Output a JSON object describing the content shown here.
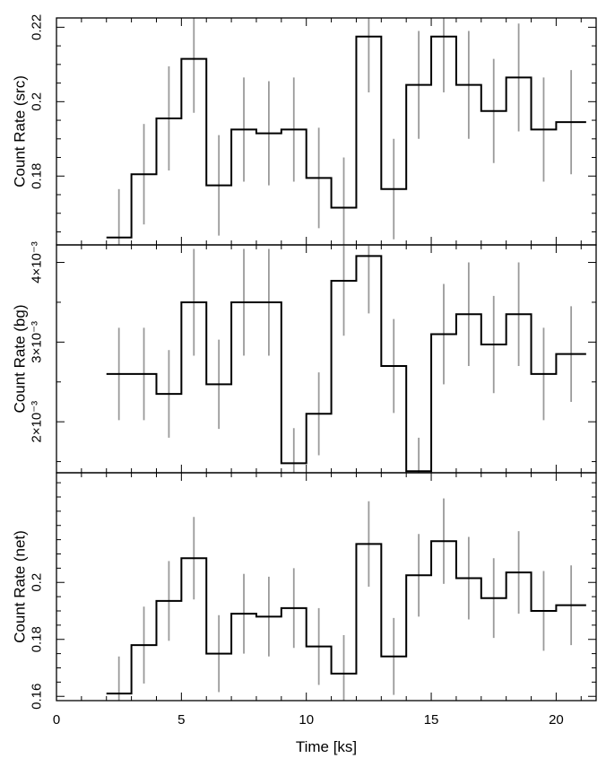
{
  "chart_data": [
    {
      "type": "line",
      "ylabel": "Count Rate (src)",
      "xlabel": "",
      "xlim": [
        0,
        21.6
      ],
      "ylim": [
        0.1615,
        0.2225
      ],
      "yticks": [
        {
          "value": 0.18,
          "label": "0.18"
        },
        {
          "value": 0.2,
          "label": "0.2"
        },
        {
          "value": 0.22,
          "label": "0.22"
        }
      ],
      "ytick_minor": [
        0.165,
        0.17,
        0.175,
        0.185,
        0.19,
        0.195,
        0.205,
        0.21,
        0.215
      ],
      "bins": [
        {
          "x0": 2.0,
          "x1": 3.0,
          "y": 0.1635,
          "err": 0.013
        },
        {
          "x0": 3.0,
          "x1": 4.0,
          "y": 0.1805,
          "err": 0.0135
        },
        {
          "x0": 4.0,
          "x1": 5.0,
          "y": 0.1955,
          "err": 0.014
        },
        {
          "x0": 5.0,
          "x1": 6.0,
          "y": 0.2115,
          "err": 0.0145
        },
        {
          "x0": 6.0,
          "x1": 7.0,
          "y": 0.1775,
          "err": 0.0135
        },
        {
          "x0": 7.0,
          "x1": 8.0,
          "y": 0.1925,
          "err": 0.014
        },
        {
          "x0": 8.0,
          "x1": 9.0,
          "y": 0.1915,
          "err": 0.014
        },
        {
          "x0": 9.0,
          "x1": 10.0,
          "y": 0.1925,
          "err": 0.014
        },
        {
          "x0": 10.0,
          "x1": 11.0,
          "y": 0.1795,
          "err": 0.0135
        },
        {
          "x0": 11.0,
          "x1": 12.0,
          "y": 0.1715,
          "err": 0.0135
        },
        {
          "x0": 12.0,
          "x1": 13.0,
          "y": 0.2175,
          "err": 0.015
        },
        {
          "x0": 13.0,
          "x1": 14.0,
          "y": 0.1765,
          "err": 0.0135
        },
        {
          "x0": 14.0,
          "x1": 15.0,
          "y": 0.2045,
          "err": 0.0145
        },
        {
          "x0": 15.0,
          "x1": 16.0,
          "y": 0.2175,
          "err": 0.015
        },
        {
          "x0": 16.0,
          "x1": 17.0,
          "y": 0.2045,
          "err": 0.0145
        },
        {
          "x0": 17.0,
          "x1": 18.0,
          "y": 0.1975,
          "err": 0.014
        },
        {
          "x0": 18.0,
          "x1": 19.0,
          "y": 0.2065,
          "err": 0.0145
        },
        {
          "x0": 19.0,
          "x1": 20.0,
          "y": 0.1925,
          "err": 0.014
        },
        {
          "x0": 20.0,
          "x1": 21.2,
          "y": 0.1945,
          "err": 0.014
        }
      ]
    },
    {
      "type": "line",
      "ylabel": "Count Rate (bg)",
      "xlabel": "",
      "xlim": [
        0,
        21.6
      ],
      "ylim": [
        0.00136,
        0.00422
      ],
      "yticks": [
        {
          "value": 0.002,
          "label": "2×10⁻³"
        },
        {
          "value": 0.003,
          "label": "3×10⁻³"
        },
        {
          "value": 0.004,
          "label": "4×10⁻³"
        }
      ],
      "ytick_minor": [
        0.0015,
        0.0025,
        0.0035
      ],
      "bins": [
        {
          "x0": 2.0,
          "x1": 3.0,
          "y": 0.0026,
          "err": 0.00058
        },
        {
          "x0": 3.0,
          "x1": 4.0,
          "y": 0.0026,
          "err": 0.00058
        },
        {
          "x0": 4.0,
          "x1": 5.0,
          "y": 0.00235,
          "err": 0.00055
        },
        {
          "x0": 5.0,
          "x1": 6.0,
          "y": 0.0035,
          "err": 0.00067
        },
        {
          "x0": 6.0,
          "x1": 7.0,
          "y": 0.00247,
          "err": 0.00056
        },
        {
          "x0": 7.0,
          "x1": 8.0,
          "y": 0.0035,
          "err": 0.00067
        },
        {
          "x0": 8.0,
          "x1": 9.0,
          "y": 0.0035,
          "err": 0.00067
        },
        {
          "x0": 9.0,
          "x1": 10.0,
          "y": 0.00148,
          "err": 0.00044
        },
        {
          "x0": 10.0,
          "x1": 11.0,
          "y": 0.0021,
          "err": 0.00052
        },
        {
          "x0": 11.0,
          "x1": 12.0,
          "y": 0.00377,
          "err": 0.00069
        },
        {
          "x0": 12.0,
          "x1": 13.0,
          "y": 0.00408,
          "err": 0.00072
        },
        {
          "x0": 13.0,
          "x1": 14.0,
          "y": 0.0027,
          "err": 0.00059
        },
        {
          "x0": 14.0,
          "x1": 15.0,
          "y": 0.00138,
          "err": 0.00042
        },
        {
          "x0": 15.0,
          "x1": 16.0,
          "y": 0.0031,
          "err": 0.00063
        },
        {
          "x0": 16.0,
          "x1": 17.0,
          "y": 0.00335,
          "err": 0.00065
        },
        {
          "x0": 17.0,
          "x1": 18.0,
          "y": 0.00297,
          "err": 0.00061
        },
        {
          "x0": 18.0,
          "x1": 19.0,
          "y": 0.00335,
          "err": 0.00065
        },
        {
          "x0": 19.0,
          "x1": 20.0,
          "y": 0.0026,
          "err": 0.00058
        },
        {
          "x0": 20.0,
          "x1": 21.2,
          "y": 0.00285,
          "err": 0.0006
        }
      ]
    },
    {
      "type": "line",
      "ylabel": "Count Rate (net)",
      "xlabel": "Time [ks]",
      "xlim": [
        0,
        21.6
      ],
      "ylim": [
        0.1585,
        0.2385
      ],
      "xticks": [
        {
          "value": 0,
          "label": "0"
        },
        {
          "value": 5,
          "label": "5"
        },
        {
          "value": 10,
          "label": "10"
        },
        {
          "value": 15,
          "label": "15"
        },
        {
          "value": 20,
          "label": "20"
        }
      ],
      "yticks": [
        {
          "value": 0.16,
          "label": "0.16"
        },
        {
          "value": 0.18,
          "label": "0.18"
        },
        {
          "value": 0.2,
          "label": "0.2"
        }
      ],
      "ytick_minor": [
        0.165,
        0.17,
        0.175,
        0.185,
        0.19,
        0.195,
        0.205,
        0.21,
        0.215,
        0.22,
        0.225,
        0.23,
        0.235
      ],
      "bins": [
        {
          "x0": 2.0,
          "x1": 3.0,
          "y": 0.161,
          "err": 0.013
        },
        {
          "x0": 3.0,
          "x1": 4.0,
          "y": 0.178,
          "err": 0.0135
        },
        {
          "x0": 4.0,
          "x1": 5.0,
          "y": 0.1935,
          "err": 0.014
        },
        {
          "x0": 5.0,
          "x1": 6.0,
          "y": 0.2085,
          "err": 0.0145
        },
        {
          "x0": 6.0,
          "x1": 7.0,
          "y": 0.175,
          "err": 0.0135
        },
        {
          "x0": 7.0,
          "x1": 8.0,
          "y": 0.189,
          "err": 0.014
        },
        {
          "x0": 8.0,
          "x1": 9.0,
          "y": 0.188,
          "err": 0.014
        },
        {
          "x0": 9.0,
          "x1": 10.0,
          "y": 0.191,
          "err": 0.014
        },
        {
          "x0": 10.0,
          "x1": 11.0,
          "y": 0.1775,
          "err": 0.0135
        },
        {
          "x0": 11.0,
          "x1": 12.0,
          "y": 0.168,
          "err": 0.0135
        },
        {
          "x0": 12.0,
          "x1": 13.0,
          "y": 0.2135,
          "err": 0.015
        },
        {
          "x0": 13.0,
          "x1": 14.0,
          "y": 0.174,
          "err": 0.0135
        },
        {
          "x0": 14.0,
          "x1": 15.0,
          "y": 0.2025,
          "err": 0.0145
        },
        {
          "x0": 15.0,
          "x1": 16.0,
          "y": 0.2145,
          "err": 0.015
        },
        {
          "x0": 16.0,
          "x1": 17.0,
          "y": 0.2015,
          "err": 0.0145
        },
        {
          "x0": 17.0,
          "x1": 18.0,
          "y": 0.1945,
          "err": 0.014
        },
        {
          "x0": 18.0,
          "x1": 19.0,
          "y": 0.2035,
          "err": 0.0145
        },
        {
          "x0": 19.0,
          "x1": 20.0,
          "y": 0.19,
          "err": 0.014
        },
        {
          "x0": 20.0,
          "x1": 21.2,
          "y": 0.192,
          "err": 0.014
        }
      ]
    }
  ],
  "x_major_ticks": [
    0,
    5,
    10,
    15,
    20
  ],
  "x_minor_ticks": [
    1,
    2,
    3,
    4,
    6,
    7,
    8,
    9,
    11,
    12,
    13,
    14,
    16,
    17,
    18,
    19,
    21
  ],
  "colors": {
    "histogram": "#000000",
    "error_bars": "#9a9a9a",
    "frame": "#000000",
    "background": "#ffffff"
  }
}
